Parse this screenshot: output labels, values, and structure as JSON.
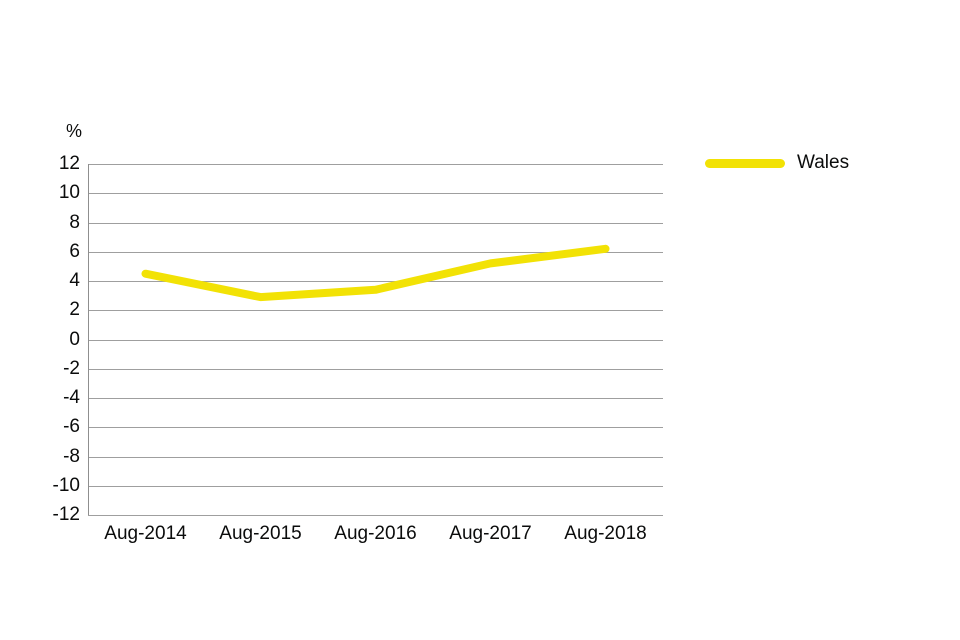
{
  "chart_data": {
    "type": "line",
    "title": "",
    "xlabel": "",
    "ylabel": "%",
    "categories": [
      "Aug-2014",
      "Aug-2015",
      "Aug-2016",
      "Aug-2017",
      "Aug-2018"
    ],
    "series": [
      {
        "name": "Wales",
        "color": "#F2E205",
        "values": [
          4.5,
          2.9,
          3.4,
          5.2,
          6.2
        ]
      }
    ],
    "ylim": [
      -12,
      12
    ],
    "y_tick_step": 2,
    "y_ticks": [
      12,
      10,
      8,
      6,
      4,
      2,
      0,
      -2,
      -4,
      -6,
      -8,
      -10,
      -12
    ],
    "grid": true,
    "legend_position": "right",
    "line_width": 8,
    "grid_color": "#9f9f9f",
    "text_color": "#0b0c0c"
  }
}
